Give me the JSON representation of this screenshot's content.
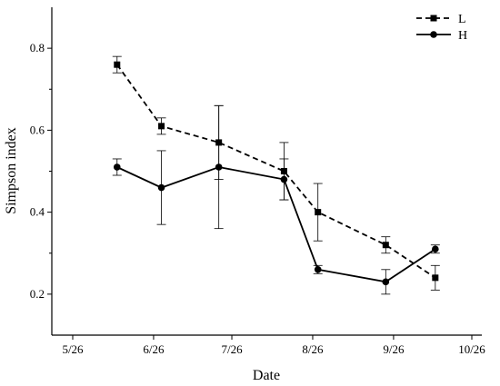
{
  "chart_data": {
    "type": "line",
    "xlabel": "Date",
    "ylabel": "Simpson index",
    "x_ticks": [
      "5/26",
      "6/26",
      "7/26",
      "8/26",
      "9/26",
      "10/26"
    ],
    "y_ticks": [
      "0.2",
      "0.4",
      "0.6",
      "0.8"
    ],
    "ylim": [
      0.1,
      0.9
    ],
    "legend_position": "top-right",
    "grid": false,
    "series": [
      {
        "name": "L",
        "line_style": "dashed",
        "marker": "square",
        "color": "#000000",
        "x": [
          "6/12",
          "6/29",
          "7/21",
          "8/15",
          "8/28",
          "9/23",
          "10/12"
        ],
        "values": [
          0.76,
          0.61,
          0.57,
          0.5,
          0.4,
          0.32,
          0.24
        ],
        "errors": [
          0.02,
          0.02,
          0.09,
          0.07,
          0.07,
          0.02,
          0.03
        ]
      },
      {
        "name": "H",
        "line_style": "solid",
        "marker": "circle",
        "color": "#000000",
        "x": [
          "6/12",
          "6/29",
          "7/21",
          "8/15",
          "8/28",
          "9/23",
          "10/12"
        ],
        "values": [
          0.51,
          0.46,
          0.51,
          0.48,
          0.26,
          0.23,
          0.31
        ],
        "errors": [
          0.02,
          0.09,
          0.15,
          0.05,
          0.01,
          0.03,
          0.01
        ]
      }
    ]
  }
}
